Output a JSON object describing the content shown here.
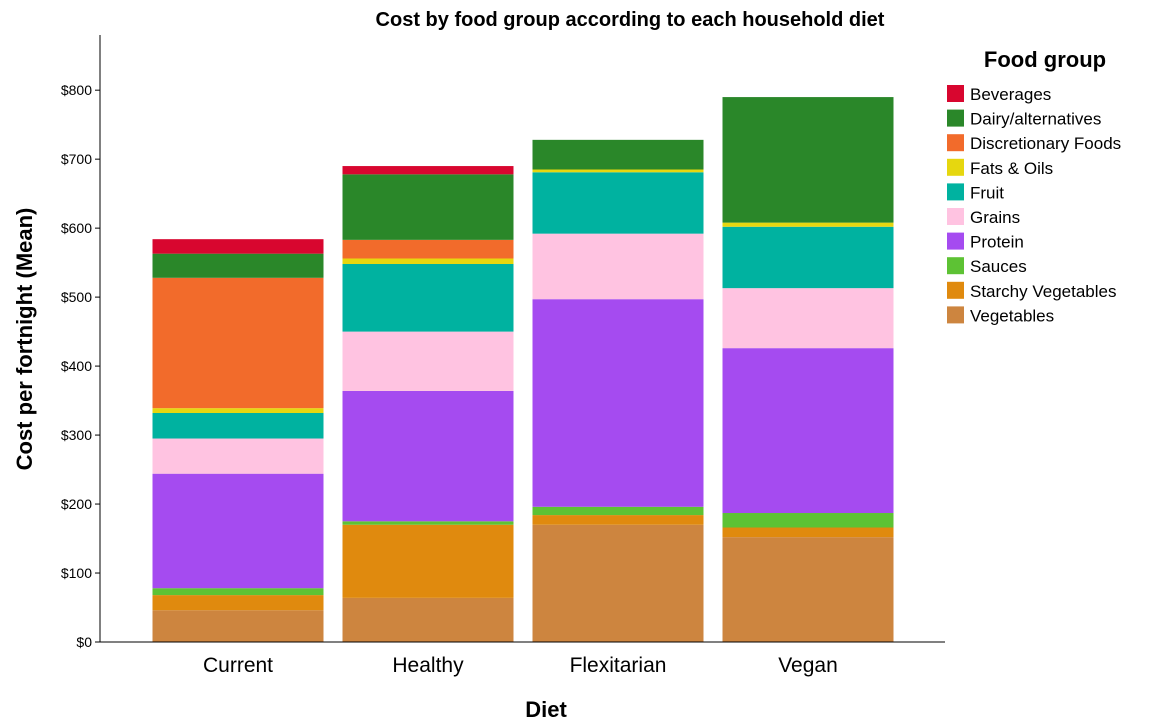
{
  "chart_data": {
    "type": "stacked-bar",
    "title": "Cost by food group according to each household diet",
    "xlabel": "Diet",
    "ylabel": "Cost per fortnight (Mean)",
    "ylim": [
      0,
      880
    ],
    "yticks": [
      0,
      100,
      200,
      300,
      400,
      500,
      600,
      700,
      800
    ],
    "ytick_labels": [
      "$0",
      "$100",
      "$200",
      "$300",
      "$400",
      "$500",
      "$600",
      "$700",
      "$800"
    ],
    "categories": [
      "Current",
      "Healthy",
      "Flexitarian",
      "Vegan"
    ],
    "legend_title": "Food group",
    "legend_position": "right",
    "grid": false,
    "series": [
      {
        "name": "Vegetables",
        "color": "#CD853F",
        "values": [
          46,
          64,
          170,
          152
        ]
      },
      {
        "name": "Starchy Vegetables",
        "color": "#E08A0E",
        "values": [
          22,
          106,
          14,
          14
        ]
      },
      {
        "name": "Sauces",
        "color": "#5DC234",
        "values": [
          10,
          5,
          12,
          21
        ]
      },
      {
        "name": "Protein",
        "color": "#A54BF0",
        "values": [
          166,
          189,
          301,
          239
        ]
      },
      {
        "name": "Grains",
        "color": "#FFC3E1",
        "values": [
          51,
          86,
          95,
          87
        ]
      },
      {
        "name": "Fruit",
        "color": "#00B2A0",
        "values": [
          37,
          98,
          89,
          89
        ]
      },
      {
        "name": "Fats & Oils",
        "color": "#E6D70F",
        "values": [
          7,
          8,
          4,
          6
        ]
      },
      {
        "name": "Discretionary Foods",
        "color": "#F26B2B",
        "values": [
          189,
          27,
          0,
          0
        ]
      },
      {
        "name": "Dairy/alternatives",
        "color": "#2A8729",
        "values": [
          35,
          95,
          43,
          182
        ]
      },
      {
        "name": "Beverages",
        "color": "#D8062F",
        "values": [
          21,
          12,
          0,
          0
        ]
      }
    ],
    "legend_order": [
      "Beverages",
      "Dairy/alternatives",
      "Discretionary Foods",
      "Fats & Oils",
      "Fruit",
      "Grains",
      "Protein",
      "Sauces",
      "Starchy Vegetables",
      "Vegetables"
    ]
  }
}
